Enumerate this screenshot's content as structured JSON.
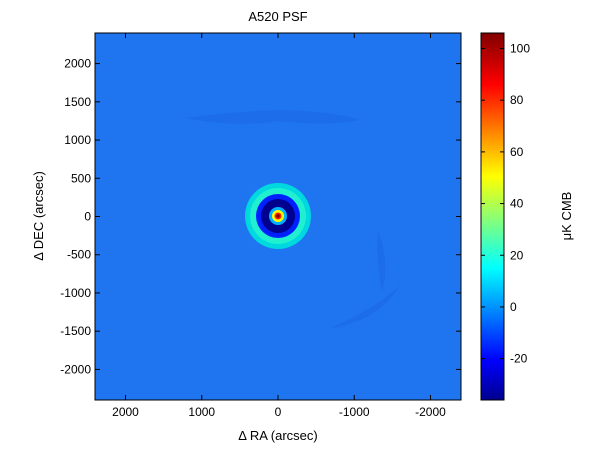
{
  "chart_data": {
    "type": "heatmap",
    "title": "A520 PSF",
    "xlabel": "Δ RA (arcsec)",
    "ylabel": "Δ DEC (arcsec)",
    "colorbar_label": "μK CMB",
    "x_reversed": true,
    "xlim": [
      2400,
      -2400
    ],
    "ylim": [
      -2400,
      2400
    ],
    "xticks": [
      2000,
      1000,
      0,
      -1000,
      -2000
    ],
    "xtick_labels": [
      "2000",
      "1000",
      "0",
      "-1000",
      "-2000"
    ],
    "yticks": [
      2000,
      1500,
      1000,
      500,
      0,
      -500,
      -1000,
      -1500,
      -2000
    ],
    "ytick_labels": [
      "2000",
      "1500",
      "1000",
      "500",
      "0",
      "-500",
      "-1000",
      "-1500",
      "-2000"
    ],
    "clim": [
      -36,
      106
    ],
    "cticks": [
      100,
      80,
      60,
      40,
      20,
      0,
      -20
    ],
    "ctick_labels": [
      "100",
      "80",
      "60",
      "40",
      "20",
      "0",
      "-20"
    ],
    "colormap": "jet",
    "background_value": 0,
    "psf": {
      "center": [
        0,
        0
      ],
      "peak_value": 106,
      "core_sigma_arcsec": 45,
      "trough_value": -36,
      "trough_radius_arcsec": 190,
      "ring_value": 10,
      "ring_radius_arcsec": 320
    },
    "grid": false
  },
  "colors": {
    "axis": "#000000",
    "background": "#1f74f0"
  }
}
